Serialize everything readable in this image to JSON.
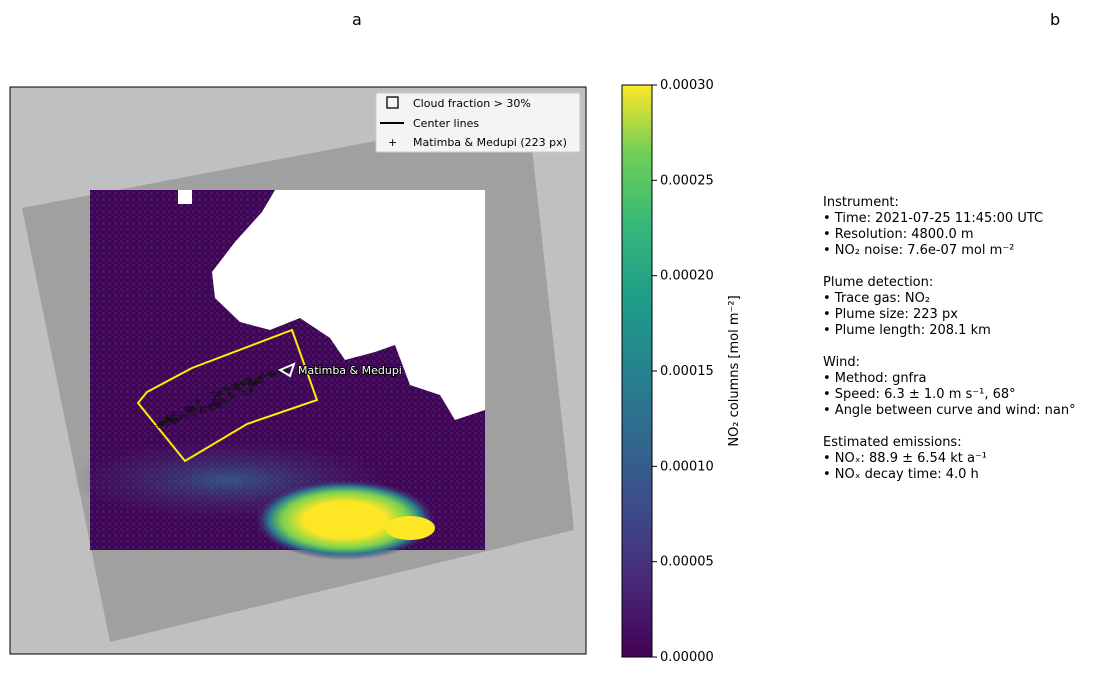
{
  "panels": {
    "a_label": "a",
    "b_label": "b"
  },
  "chart_data": {
    "type": "heatmap",
    "title": "",
    "colorbar": {
      "label": "NO₂ columns [mol m⁻²]",
      "range": [
        0.0,
        0.0003
      ],
      "ticks": [
        "0.00000",
        "0.00005",
        "0.00010",
        "0.00015",
        "0.00020",
        "0.00025",
        "0.00030"
      ],
      "colormap": "viridis"
    },
    "legend": {
      "position": "top-right",
      "entries": [
        {
          "name": "cloud-fraction-entry",
          "label": "Cloud fraction > 30%",
          "marker": "square"
        },
        {
          "name": "center-lines-entry",
          "label": "Center lines",
          "marker": "line"
        },
        {
          "name": "source-pixels-entry",
          "label": "Matimba & Medupi (223 px)",
          "marker": "plus"
        }
      ]
    },
    "annotations": [
      {
        "name": "source-label",
        "text": "Matimba & Medupi"
      }
    ],
    "colors": {
      "outer_background": "#c0c0c0",
      "swath": "#a0a0a0",
      "cloud_mask": "#ffffff",
      "plume_polygon": "#ffee00",
      "low_no2": "#440154",
      "high_no2": "#fde725"
    }
  },
  "info": {
    "instrument": {
      "heading": "Instrument:",
      "time": "• Time: 2021-07-25 11:45:00 UTC",
      "resolution": "• Resolution: 4800.0 m",
      "noise": "• NO₂ noise: 7.6e-07 mol m⁻²"
    },
    "plume": {
      "heading": "Plume detection:",
      "trace_gas": "• Trace gas: NO₂",
      "size": "• Plume size: 223 px",
      "length": "• Plume length: 208.1 km"
    },
    "wind": {
      "heading": "Wind:",
      "method": "• Method: gnfra",
      "speed": "• Speed: 6.3 ± 1.0 m s⁻¹, 68°",
      "angle": "• Angle between curve and wind: nan°"
    },
    "emissions": {
      "heading": "Estimated emissions:",
      "nox": "• NOₓ: 88.9 ± 6.54 kt a⁻¹",
      "decay": "• NOₓ decay time: 4.0 h"
    }
  }
}
